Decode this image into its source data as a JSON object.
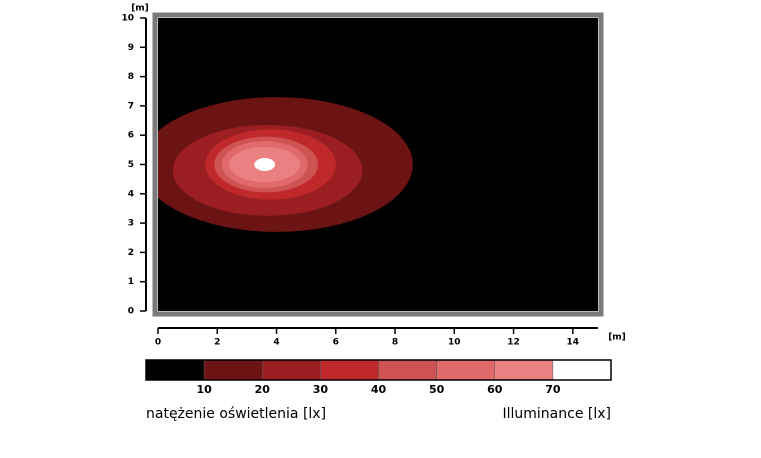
{
  "chart_data": {
    "type": "contour",
    "x_unit": "[m]",
    "y_unit": "[m]",
    "xlim": [
      0,
      14.85
    ],
    "ylim": [
      0,
      10
    ],
    "xticks": [
      0,
      2,
      4,
      6,
      8,
      10,
      12,
      14
    ],
    "yticks": [
      0,
      1,
      2,
      3,
      4,
      5,
      6,
      7,
      8,
      9,
      10
    ],
    "contours": [
      {
        "level": 10,
        "cx": 4.0,
        "cy": 5.0,
        "rx": 4.6,
        "ry": 2.3
      },
      {
        "level": 20,
        "cx": 3.7,
        "cy": 4.8,
        "rx": 3.2,
        "ry": 1.55
      },
      {
        "level": 30,
        "cx": 3.8,
        "cy": 5.0,
        "rx": 2.2,
        "ry": 1.2
      },
      {
        "level": 40,
        "cx": 3.65,
        "cy": 5.0,
        "rx": 1.75,
        "ry": 0.95
      },
      {
        "level": 50,
        "cx": 3.6,
        "cy": 5.0,
        "rx": 1.45,
        "ry": 0.8
      },
      {
        "level": 60,
        "cx": 3.6,
        "cy": 5.0,
        "rx": 1.2,
        "ry": 0.6
      },
      {
        "level": 70,
        "cx": 3.6,
        "cy": 5.0,
        "rx": 0.35,
        "ry": 0.22
      }
    ],
    "colorbar": {
      "ticks": [
        10,
        20,
        30,
        40,
        50,
        60,
        70
      ],
      "colors": [
        "#000000",
        "#6b1413",
        "#9b1f22",
        "#c0292b",
        "#d05354",
        "#e06a6b",
        "#ea8082",
        "#ffffff"
      ]
    },
    "caption_left": "natężenie oświetlenia [lx]",
    "caption_right": "Illuminance [lx]"
  }
}
